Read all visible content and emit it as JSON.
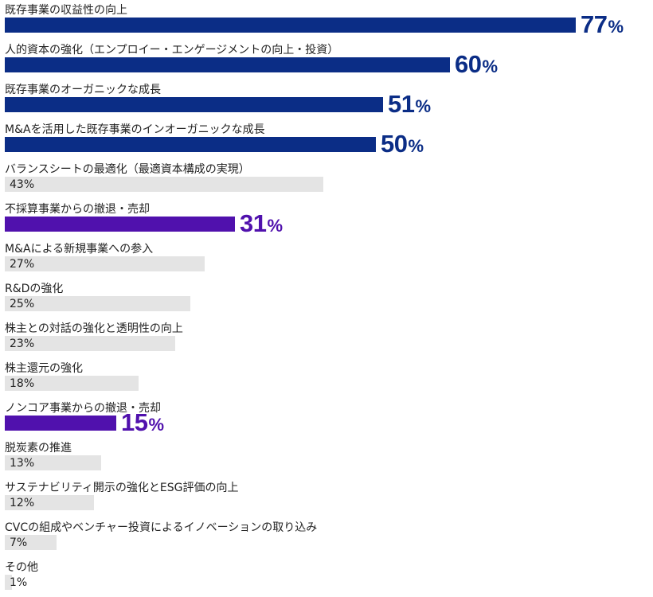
{
  "chart_data": {
    "type": "bar",
    "orientation": "horizontal",
    "unit": "%",
    "xlim": [
      0,
      100
    ],
    "grid": false,
    "categories": [
      "既存事業の収益性の向上",
      "人的資本の強化（エンプロイー・エンゲージメントの向上・投資）",
      "既存事業のオーガニックな成長",
      "M&Aを活用した既存事業のインオーガニックな成長",
      "バランスシートの最適化（最適資本構成の実現）",
      "不採算事業からの撤退・売却",
      "M&Aによる新規事業への参入",
      "R&Dの強化",
      "株主との対話の強化と透明性の向上",
      "株主還元の強化",
      "ノンコア事業からの撤退・売却",
      "脱炭素の推進",
      "サステナビリティ開示の強化とESG評価の向上",
      "CVCの組成やベンチャー投資によるイノベーションの取り込み",
      "その他"
    ],
    "values": [
      77,
      60,
      51,
      50,
      43,
      31,
      27,
      25,
      23,
      18,
      15,
      13,
      12,
      7,
      1
    ],
    "highlight": [
      "navy",
      "navy",
      "navy",
      "navy",
      "none",
      "purple",
      "none",
      "none",
      "none",
      "none",
      "purple",
      "none",
      "none",
      "none",
      "none"
    ]
  },
  "colors": {
    "navy": "#0b2d86",
    "purple": "#5011ad",
    "none": "#e4e4e4"
  }
}
